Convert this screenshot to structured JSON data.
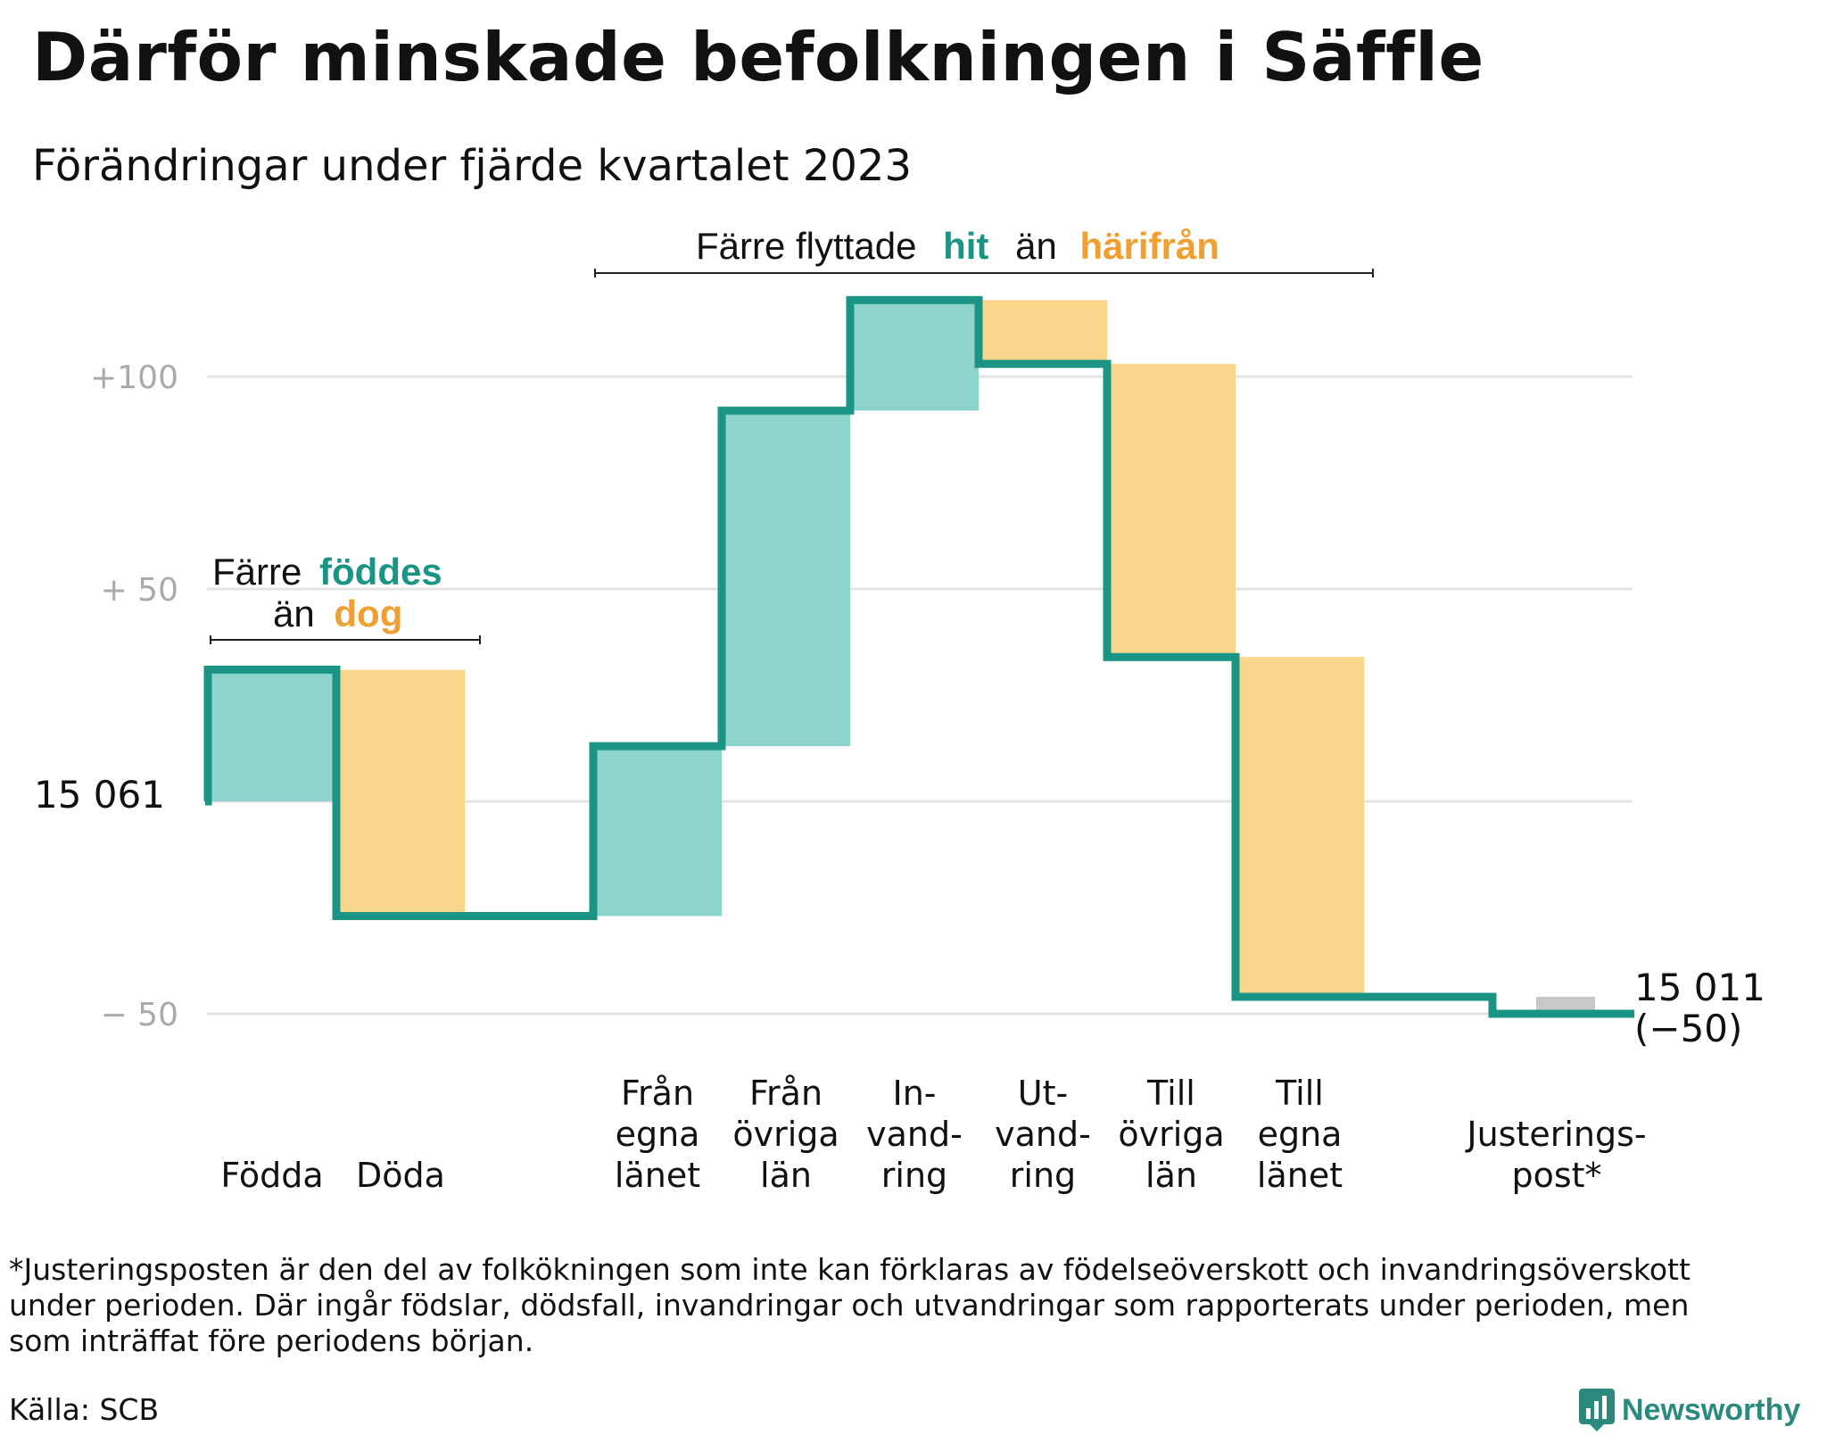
{
  "title": "Därför minskade befolkningen i Säffle",
  "subtitle": "Förändringar under fjärde kvartalet 2023",
  "colors": {
    "increase": "#8dd5cc",
    "decrease": "#fad58c",
    "adjustment": "#c8c8c8",
    "line": "#1a9585",
    "teal_text": "#1a9585",
    "orange_text": "#f0a030",
    "grid": "#e3e3e3",
    "tick_text": "#aaaaaa"
  },
  "annotations": {
    "births_deaths": {
      "prefix": "Färre",
      "highlight1": "föddes",
      "middle": "än",
      "highlight2": "dog"
    },
    "migration": {
      "prefix": "Färre flyttade",
      "highlight1": "hit",
      "middle": "än",
      "highlight2": "härifrån"
    }
  },
  "start_label": "15  061",
  "end_label": [
    "15 011",
    "(−50)"
  ],
  "footnote": "*Justeringsposten är den del av folkökningen som inte kan förklaras av födelseöverskott och invandringsöverskott\nunder perioden. Där ingår födslar, dödsfall, invandringar och utvandringar som rapporterats under perioden, men\nsom inträffat före periodens början.",
  "source": "Källa: SCB",
  "brand": "Newsworthy",
  "chart_data": {
    "type": "waterfall",
    "title": "Därför minskade befolkningen i Säffle",
    "subtitle": "Förändringar under fjärde kvartalet 2023",
    "start_value": 15061,
    "end_value": 15011,
    "net_change": -50,
    "y_axis": {
      "unit": "change relative to 15 061",
      "range": [
        -60,
        125
      ],
      "ticks": [
        {
          "value": 100,
          "label": "+100"
        },
        {
          "value": 50,
          "label": "+  50"
        },
        {
          "value": 0,
          "label": "15  061"
        },
        {
          "value": -50,
          "label": "−  50"
        }
      ],
      "grid": true
    },
    "categories": [
      {
        "label": [
          "Födda"
        ],
        "change": 31,
        "kind": "increase"
      },
      {
        "label": [
          "Döda"
        ],
        "change": -58,
        "kind": "decrease"
      },
      {
        "label": [
          "Från",
          "egna",
          "länet"
        ],
        "change": 40,
        "kind": "increase"
      },
      {
        "label": [
          "Från",
          "övriga",
          "län"
        ],
        "change": 79,
        "kind": "increase"
      },
      {
        "label": [
          "In-",
          "vand-",
          "ring"
        ],
        "change": 26,
        "kind": "increase"
      },
      {
        "label": [
          "Ut-",
          "vand-",
          "ring"
        ],
        "change": -15,
        "kind": "decrease"
      },
      {
        "label": [
          "Till",
          "övriga",
          "län"
        ],
        "change": -69,
        "kind": "decrease"
      },
      {
        "label": [
          "Till",
          "egna",
          "länet"
        ],
        "change": -80,
        "kind": "decrease"
      },
      {
        "label": [
          "Justerings-",
          "post*"
        ],
        "change": -4,
        "kind": "adjustment"
      }
    ],
    "gaps_after": [
      1,
      7
    ]
  }
}
